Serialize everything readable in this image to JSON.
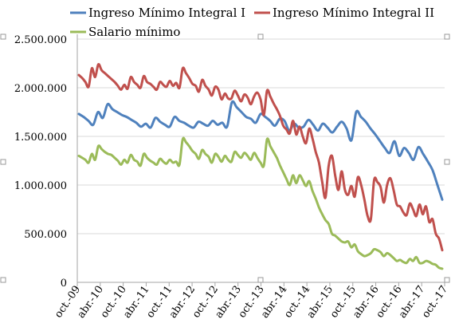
{
  "chart_data": {
    "type": "line",
    "title": "",
    "xlabel": "",
    "ylabel": "",
    "ylim": [
      0,
      2500000
    ],
    "y_ticks": [
      0,
      500000,
      1000000,
      1500000,
      2000000,
      2500000
    ],
    "y_tick_labels": [
      "0",
      "500.000",
      "1.000.000",
      "1.500.000",
      "2.000.000",
      "2.500.000"
    ],
    "grid": true,
    "legend_position": "top",
    "x_tick_labels": [
      "oct.-09",
      "abr.-10",
      "oct.-10",
      "abr.-11",
      "oct.-11",
      "abr.-12",
      "oct.-12",
      "abr.-13",
      "oct.-13",
      "abr.-14",
      "oct.-14",
      "abr.-15",
      "oct.-15",
      "abr.-16",
      "oct.-16",
      "abr.-17",
      "oct.-17"
    ],
    "series": [
      {
        "name": "Ingreso Mínimo Integral I",
        "color": "#4f81bd",
        "values": [
          1730000,
          1700000,
          1660000,
          1620000,
          1750000,
          1690000,
          1830000,
          1780000,
          1750000,
          1720000,
          1700000,
          1670000,
          1640000,
          1600000,
          1630000,
          1590000,
          1690000,
          1650000,
          1620000,
          1600000,
          1700000,
          1660000,
          1640000,
          1610000,
          1590000,
          1650000,
          1630000,
          1610000,
          1660000,
          1620000,
          1640000,
          1600000,
          1850000,
          1800000,
          1750000,
          1700000,
          1680000,
          1640000,
          1730000,
          1700000,
          1660000,
          1610000,
          1680000,
          1660000,
          1560000,
          1630000,
          1590000,
          1600000,
          1670000,
          1620000,
          1560000,
          1630000,
          1590000,
          1540000,
          1600000,
          1650000,
          1580000,
          1460000,
          1750000,
          1700000,
          1650000,
          1580000,
          1520000,
          1450000,
          1380000,
          1330000,
          1450000,
          1300000,
          1380000,
          1330000,
          1260000,
          1390000,
          1320000,
          1240000,
          1150000,
          1000000,
          850000
        ]
      },
      {
        "name": "Ingreso Mínimo Integral II",
        "color": "#c0504d",
        "values": [
          2130000,
          2100000,
          2060000,
          2010000,
          2200000,
          2110000,
          2240000,
          2180000,
          2150000,
          2120000,
          2090000,
          2060000,
          2020000,
          1980000,
          2030000,
          1990000,
          2110000,
          2060000,
          2030000,
          2000000,
          2120000,
          2060000,
          2040000,
          2010000,
          1980000,
          2060000,
          2030000,
          2010000,
          2070000,
          2020000,
          2050000,
          2000000,
          2200000,
          2150000,
          2100000,
          2040000,
          2020000,
          1960000,
          2080000,
          2020000,
          1980000,
          1920000,
          2010000,
          1980000,
          1880000,
          1940000,
          1890000,
          1890000,
          1970000,
          1920000,
          1860000,
          1930000,
          1900000,
          1830000,
          1910000,
          1950000,
          1880000,
          1720000,
          1970000,
          1910000,
          1840000,
          1780000,
          1710000,
          1610000,
          1570000,
          1530000,
          1660000,
          1520000,
          1600000,
          1500000,
          1430000,
          1580000,
          1480000,
          1340000,
          1230000,
          1030000,
          870000,
          1200000,
          1300000,
          1100000,
          950000,
          1140000,
          950000,
          900000,
          990000,
          880000,
          1080000,
          1000000,
          850000,
          680000,
          650000,
          1050000,
          1030000,
          980000,
          820000,
          1000000,
          1070000,
          950000,
          800000,
          780000,
          720000,
          690000,
          810000,
          750000,
          680000,
          800000,
          700000,
          780000,
          620000,
          650000,
          500000,
          450000,
          330000
        ]
      },
      {
        "name": "Salario mínimo",
        "color": "#9bbb59",
        "values": [
          1300000,
          1280000,
          1260000,
          1230000,
          1320000,
          1260000,
          1400000,
          1370000,
          1340000,
          1320000,
          1310000,
          1280000,
          1250000,
          1210000,
          1260000,
          1230000,
          1310000,
          1260000,
          1240000,
          1200000,
          1320000,
          1280000,
          1250000,
          1230000,
          1210000,
          1270000,
          1240000,
          1220000,
          1260000,
          1230000,
          1240000,
          1210000,
          1470000,
          1440000,
          1400000,
          1350000,
          1320000,
          1270000,
          1360000,
          1320000,
          1290000,
          1230000,
          1320000,
          1290000,
          1240000,
          1300000,
          1260000,
          1240000,
          1340000,
          1310000,
          1280000,
          1330000,
          1300000,
          1260000,
          1330000,
          1280000,
          1230000,
          1200000,
          1470000,
          1400000,
          1340000,
          1280000,
          1200000,
          1130000,
          1060000,
          1000000,
          1100000,
          1020000,
          1100000,
          1050000,
          990000,
          1040000,
          940000,
          860000,
          770000,
          700000,
          640000,
          600000,
          500000,
          480000,
          450000,
          420000,
          410000,
          420000,
          360000,
          390000,
          320000,
          290000,
          270000,
          280000,
          300000,
          340000,
          330000,
          310000,
          270000,
          300000,
          280000,
          250000,
          220000,
          230000,
          210000,
          200000,
          240000,
          220000,
          260000,
          200000,
          200000,
          220000,
          210000,
          190000,
          180000,
          150000,
          140000
        ]
      }
    ]
  }
}
